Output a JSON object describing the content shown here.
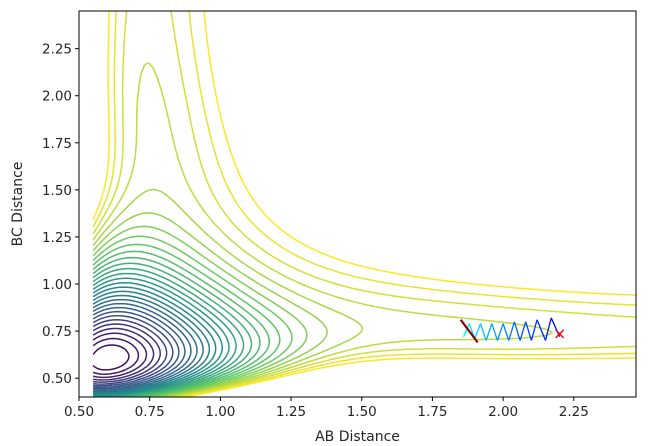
{
  "chart_data": {
    "type": "contour",
    "xlabel": "AB Distance",
    "ylabel": "BC Distance",
    "xlim": [
      0.5,
      2.47
    ],
    "ylim": [
      0.4,
      2.45
    ],
    "x_ticks": [
      0.5,
      0.75,
      1.0,
      1.25,
      1.5,
      1.75,
      2.0,
      2.25
    ],
    "y_ticks": [
      0.5,
      0.75,
      1.0,
      1.25,
      1.5,
      1.75,
      2.0,
      2.25
    ],
    "x_tick_labels": [
      "0.50",
      "0.75",
      "1.00",
      "1.25",
      "1.50",
      "1.75",
      "2.00",
      "2.25"
    ],
    "y_tick_labels": [
      "0.50",
      "0.75",
      "1.00",
      "1.25",
      "1.50",
      "1.75",
      "2.00",
      "2.25"
    ],
    "grid": false,
    "contour_levels": 30,
    "colormap": [
      "#440154",
      "#3b528b",
      "#21918c",
      "#5ec962",
      "#fde725"
    ],
    "trajectory": {
      "color_start": "#00ffff",
      "color_end": "#0000ff",
      "points": [
        [
          2.2,
          0.72
        ],
        [
          2.17,
          0.82
        ],
        [
          2.15,
          0.7
        ],
        [
          2.12,
          0.81
        ],
        [
          2.1,
          0.7
        ],
        [
          2.08,
          0.8
        ],
        [
          2.06,
          0.7
        ],
        [
          2.04,
          0.8
        ],
        [
          2.02,
          0.7
        ],
        [
          2.0,
          0.79
        ],
        [
          1.98,
          0.7
        ],
        [
          1.96,
          0.79
        ],
        [
          1.94,
          0.7
        ],
        [
          1.92,
          0.79
        ],
        [
          1.9,
          0.71
        ],
        [
          1.88,
          0.79
        ],
        [
          1.86,
          0.72
        ],
        [
          1.87,
          0.75
        ]
      ]
    },
    "end_marker": {
      "x": 2.2,
      "y": 0.735,
      "color": "#ff0000",
      "symbol": "x"
    },
    "dark_segment": {
      "color": "#8b0000",
      "points": [
        [
          1.85,
          0.81
        ],
        [
          1.91,
          0.69
        ]
      ]
    }
  }
}
